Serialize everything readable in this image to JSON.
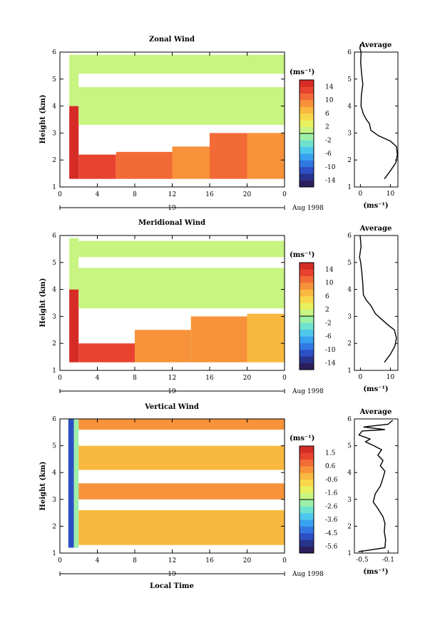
{
  "colorscale": [
    "#2c1e5c",
    "#27338c",
    "#2d4fc4",
    "#3278e3",
    "#39a2f0",
    "#4dc8ec",
    "#6fe2cf",
    "#9cf0a8",
    "#c8f481",
    "#e8f05f",
    "#f8d84a",
    "#f9b83f",
    "#f7923a",
    "#f26b36",
    "#e8432e",
    "#d62c26"
  ],
  "chart_data": [
    {
      "type": "heatmap",
      "title": "Zonal Wind",
      "ylabel": "Height (km)",
      "xticks": [
        "0",
        "4",
        "8",
        "12",
        "16",
        "20",
        "0"
      ],
      "yticks": [
        "1",
        "2",
        "3",
        "4",
        "5",
        "6"
      ],
      "day_label": "19",
      "month_label": "Aug 1998",
      "colorbar_unit": "(ms⁻¹)",
      "colorbar_ticks": [
        "14",
        "10",
        "6",
        "2",
        "-2",
        "-6",
        "-10",
        "-14"
      ],
      "vmin": -16,
      "vmax": 16,
      "xlim": [
        0,
        24
      ],
      "ylim": [
        1,
        6
      ],
      "grid": [
        {
          "x0": 1,
          "x1": 2,
          "y0": 1.3,
          "y1": 4.0,
          "value": 14
        },
        {
          "x0": 2,
          "x1": 6,
          "y0": 1.3,
          "y1": 2.2,
          "value": 12
        },
        {
          "x0": 6,
          "x1": 12,
          "y0": 1.3,
          "y1": 2.3,
          "value": 10
        },
        {
          "x0": 12,
          "x1": 16,
          "y0": 1.3,
          "y1": 2.5,
          "value": 9
        },
        {
          "x0": 16,
          "x1": 20,
          "y0": 1.3,
          "y1": 3.0,
          "value": 10
        },
        {
          "x0": 20,
          "x1": 24,
          "y0": 1.3,
          "y1": 3.0,
          "value": 8
        },
        {
          "x0": 1,
          "x1": 2,
          "y0": 4.0,
          "y1": 5.9,
          "value": 0
        },
        {
          "x0": 2,
          "x1": 24,
          "y0": 5.2,
          "y1": 5.9,
          "value": 0
        },
        {
          "x0": 2,
          "x1": 24,
          "y0": 3.3,
          "y1": 4.7,
          "value": 0
        }
      ],
      "profile": {
        "title": "Average",
        "xlabel": "(ms⁻¹)",
        "xticks": [
          "0",
          "10"
        ],
        "yticks": [
          "1",
          "2",
          "3",
          "4",
          "5",
          "6"
        ],
        "xlim": [
          -2,
          12.5
        ],
        "ylim": [
          1,
          6
        ],
        "x": [
          8,
          10,
          11.8,
          12.3,
          12.0,
          10,
          6,
          3.5,
          3.0,
          2.0,
          1.0,
          0.2,
          0.3,
          0.8,
          0.4,
          0.1,
          0.2,
          -0.2,
          0.1
        ],
        "y": [
          1.3,
          1.6,
          1.9,
          2.2,
          2.5,
          2.7,
          2.9,
          3.1,
          3.35,
          3.5,
          3.7,
          4.0,
          4.4,
          4.8,
          5.2,
          5.6,
          6.0,
          6.15,
          6.3
        ]
      }
    },
    {
      "type": "heatmap",
      "title": "Meridional Wind",
      "ylabel": "Height (km)",
      "xticks": [
        "0",
        "4",
        "8",
        "12",
        "16",
        "20",
        "0"
      ],
      "yticks": [
        "1",
        "2",
        "3",
        "4",
        "5",
        "6"
      ],
      "day_label": "19",
      "month_label": "Aug 1998",
      "colorbar_unit": "(ms⁻¹)",
      "colorbar_ticks": [
        "14",
        "10",
        "6",
        "2",
        "-2",
        "-6",
        "-10",
        "-14"
      ],
      "vmin": -16,
      "vmax": 16,
      "xlim": [
        0,
        24
      ],
      "ylim": [
        1,
        6
      ],
      "grid": [
        {
          "x0": 1,
          "x1": 2,
          "y0": 1.3,
          "y1": 4.0,
          "value": 14
        },
        {
          "x0": 2,
          "x1": 8,
          "y0": 1.3,
          "y1": 2.0,
          "value": 12
        },
        {
          "x0": 8,
          "x1": 14,
          "y0": 1.3,
          "y1": 2.5,
          "value": 9
        },
        {
          "x0": 14,
          "x1": 20,
          "y0": 1.3,
          "y1": 3.0,
          "value": 8
        },
        {
          "x0": 20,
          "x1": 24,
          "y0": 1.3,
          "y1": 3.1,
          "value": 7
        },
        {
          "x0": 1,
          "x1": 2,
          "y0": 4.0,
          "y1": 5.9,
          "value": 0
        },
        {
          "x0": 2,
          "x1": 24,
          "y0": 5.2,
          "y1": 5.8,
          "value": 0
        },
        {
          "x0": 2,
          "x1": 24,
          "y0": 3.3,
          "y1": 4.8,
          "value": 0
        }
      ],
      "profile": {
        "title": "Average",
        "xlabel": "(ms⁻¹)",
        "xticks": [
          "0",
          "10"
        ],
        "yticks": [
          "1",
          "2",
          "3",
          "4",
          "5",
          "6"
        ],
        "xlim": [
          -2,
          12.5
        ],
        "ylim": [
          1,
          6
        ],
        "x": [
          8,
          10,
          11.5,
          12.0,
          11.3,
          9,
          7,
          5,
          3.5,
          2.0,
          1.0,
          0.8,
          0.5,
          0.1,
          -0.3,
          0.2,
          -0.1
        ],
        "y": [
          1.3,
          1.6,
          1.9,
          2.2,
          2.5,
          2.7,
          2.9,
          3.1,
          3.4,
          3.6,
          3.8,
          4.2,
          4.6,
          5.0,
          5.2,
          5.6,
          6.0
        ]
      }
    },
    {
      "type": "heatmap",
      "title": "Vertical Wind",
      "ylabel": "Height (km)",
      "xlabel": "Local Time",
      "xticks": [
        "0",
        "4",
        "8",
        "12",
        "16",
        "20",
        "0"
      ],
      "yticks": [
        "1",
        "2",
        "3",
        "4",
        "5",
        "6"
      ],
      "day_label": "19",
      "month_label": "Aug 1998",
      "colorbar_unit": "(ms⁻¹)",
      "colorbar_ticks": [
        "1.5",
        "0.6",
        "-0.6",
        "-1.6",
        "-2.6",
        "-3.6",
        "-4.5",
        "-5.6"
      ],
      "vmin": -6.2,
      "vmax": 2.2,
      "xlim": [
        0,
        24
      ],
      "ylim": [
        1,
        6
      ],
      "grid": [
        {
          "x0": 0.9,
          "x1": 1.5,
          "y0": 1.2,
          "y1": 6.0,
          "value": -5.0
        },
        {
          "x0": 1.5,
          "x1": 2.0,
          "y0": 1.2,
          "y1": 6.0,
          "value": -2.5
        },
        {
          "x0": 2.0,
          "x1": 24,
          "y0": 1.3,
          "y1": 2.6,
          "value": 0.0
        },
        {
          "x0": 2.0,
          "x1": 24,
          "y0": 3.0,
          "y1": 3.6,
          "value": 0.2
        },
        {
          "x0": 2.0,
          "x1": 24,
          "y0": 4.1,
          "y1": 5.0,
          "value": 0.0
        },
        {
          "x0": 2.0,
          "x1": 24,
          "y0": 5.6,
          "y1": 6.0,
          "value": 0.2
        }
      ],
      "profile": {
        "title": "Average",
        "xlabel": "(ms⁻¹)",
        "xticks": [
          "-0.5",
          "-0.1"
        ],
        "yticks": [
          "1",
          "2",
          "3",
          "4",
          "5",
          "6"
        ],
        "xlim": [
          -0.62,
          0.05
        ],
        "ylim": [
          1,
          6
        ],
        "x": [
          -0.56,
          -0.15,
          -0.14,
          -0.16,
          -0.15,
          -0.18,
          -0.27,
          -0.33,
          -0.3,
          -0.22,
          -0.18,
          -0.15,
          -0.22,
          -0.18,
          -0.26,
          -0.2,
          -0.32,
          -0.45,
          -0.38,
          -0.55,
          -0.5,
          -0.15,
          -0.48,
          -0.1,
          -0.03
        ],
        "y": [
          1.05,
          1.2,
          1.5,
          1.8,
          2.1,
          2.35,
          2.7,
          2.9,
          3.2,
          3.5,
          3.8,
          4.05,
          4.25,
          4.45,
          4.65,
          4.85,
          5.0,
          5.15,
          5.25,
          5.4,
          5.55,
          5.6,
          5.7,
          5.8,
          5.95
        ]
      }
    }
  ]
}
